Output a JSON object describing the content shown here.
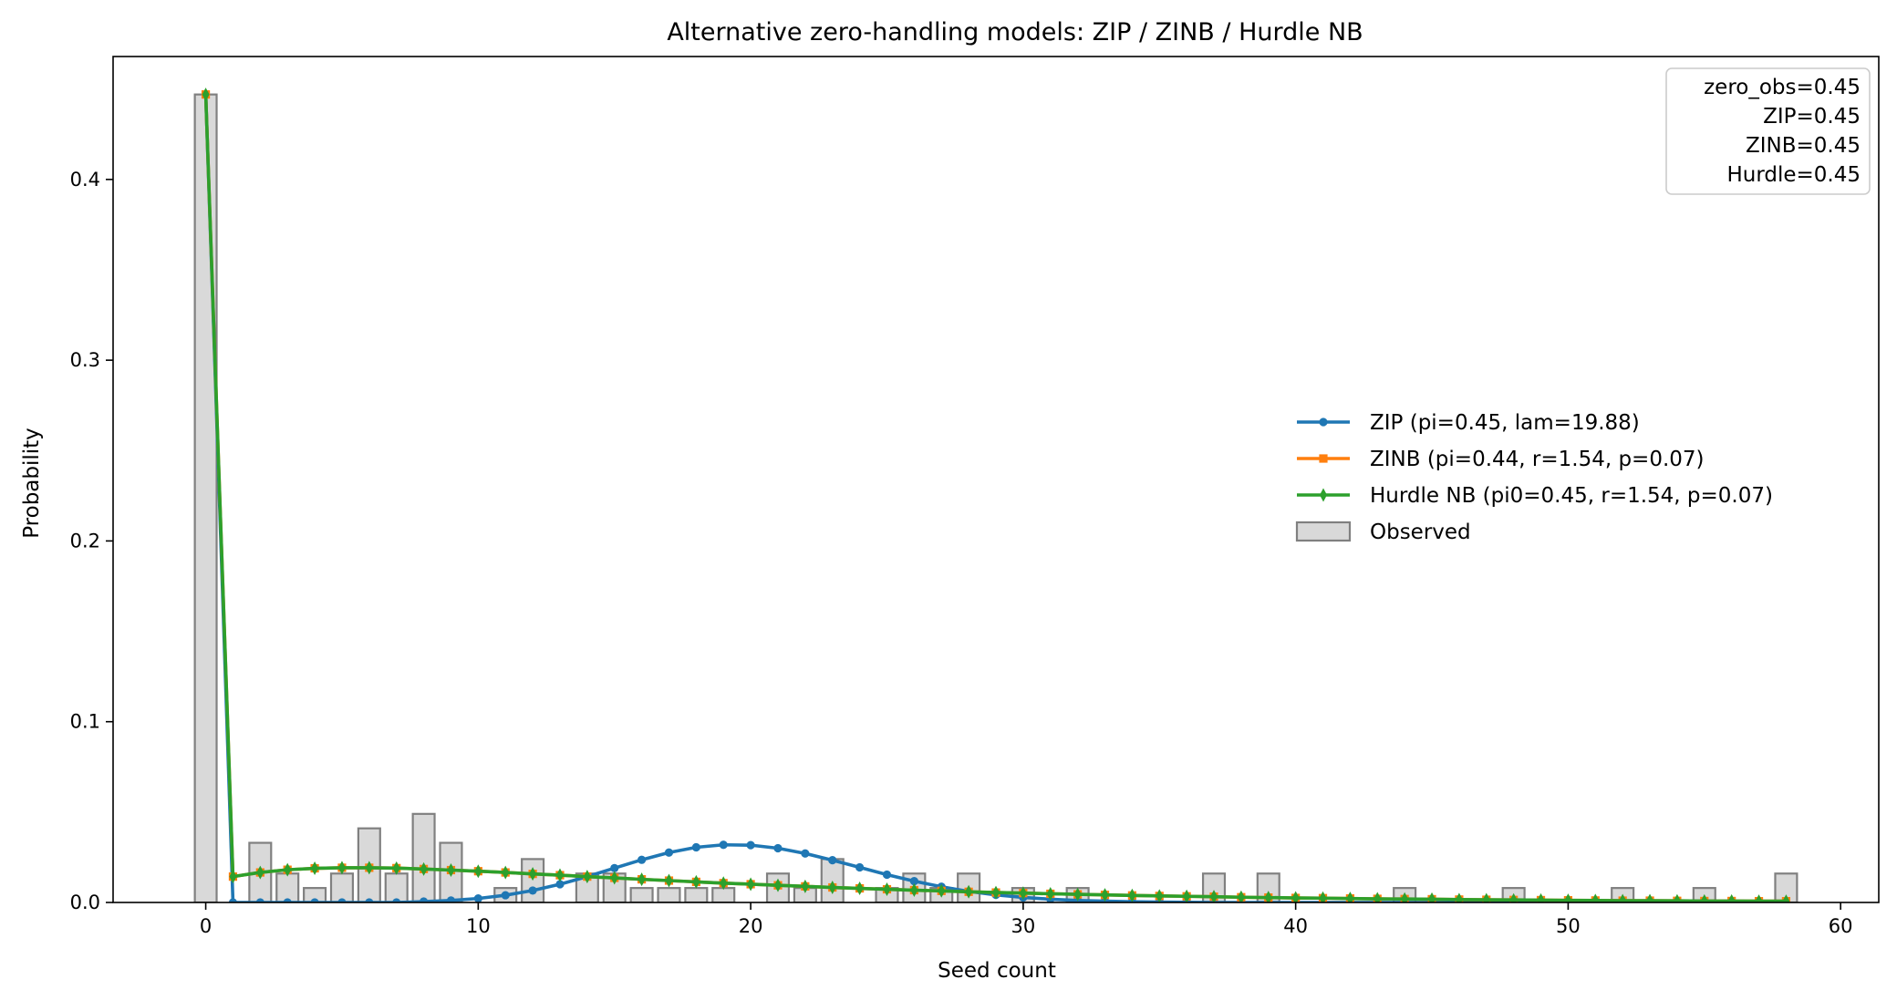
{
  "chart_data": {
    "type": "bar",
    "title": "Alternative zero-handling models: ZIP / ZINB / Hurdle NB",
    "xlabel": "Seed count",
    "ylabel": "Probability",
    "xlim": [
      -3.4,
      61.4
    ],
    "ylim": [
      0,
      0.468
    ],
    "xticks": [
      0,
      10,
      20,
      30,
      40,
      50,
      60
    ],
    "yticks": [
      0.0,
      0.1,
      0.2,
      0.3,
      0.4
    ],
    "ytick_labels": [
      "0.0",
      "0.1",
      "0.2",
      "0.3",
      "0.4"
    ],
    "legend_position": "center-right",
    "observed": {
      "name": "Observed",
      "color": "#d9d9d9",
      "edge_color": "#808080",
      "x": [
        0,
        2,
        3,
        4,
        5,
        6,
        7,
        8,
        9,
        11,
        12,
        14,
        15,
        16,
        17,
        18,
        19,
        21,
        22,
        23,
        25,
        26,
        27,
        28,
        30,
        32,
        37,
        39,
        44,
        48,
        52,
        55,
        58
      ],
      "values": [
        0.447,
        0.033,
        0.016,
        0.008,
        0.016,
        0.041,
        0.016,
        0.049,
        0.033,
        0.008,
        0.024,
        0.016,
        0.016,
        0.008,
        0.008,
        0.008,
        0.008,
        0.016,
        0.008,
        0.024,
        0.008,
        0.016,
        0.008,
        0.016,
        0.008,
        0.008,
        0.016,
        0.016,
        0.008,
        0.008,
        0.008,
        0.008,
        0.016
      ]
    },
    "x": [
      0,
      1,
      2,
      3,
      4,
      5,
      6,
      7,
      8,
      9,
      10,
      11,
      12,
      13,
      14,
      15,
      16,
      17,
      18,
      19,
      20,
      21,
      22,
      23,
      24,
      25,
      26,
      27,
      28,
      29,
      30,
      31,
      32,
      33,
      34,
      35,
      36,
      37,
      38,
      39,
      40,
      41,
      42,
      43,
      44,
      45,
      46,
      47,
      48,
      49,
      50,
      51,
      52,
      53,
      54,
      55,
      56,
      57,
      58
    ],
    "series": [
      {
        "name": "ZIP (pi=0.45, lam=19.88)",
        "color": "#1f77b4",
        "marker": "circle",
        "values": [
          0.447,
          0.0,
          0.0,
          0.0,
          0.0,
          0.0,
          0.0,
          0.0,
          0.0005,
          0.0011,
          0.0022,
          0.004,
          0.0066,
          0.0101,
          0.0143,
          0.019,
          0.0236,
          0.0276,
          0.0305,
          0.0319,
          0.0317,
          0.03,
          0.0271,
          0.0234,
          0.0194,
          0.0154,
          0.0118,
          0.0087,
          0.0061,
          0.0042,
          0.0028,
          0.0018,
          0.0011,
          0.0007,
          0.0004,
          0.0002,
          0.0001,
          0.0,
          0.0,
          0.0,
          0.0,
          0.0,
          0.0,
          0.0,
          0.0,
          0.0,
          0.0,
          0.0,
          0.0,
          0.0,
          0.0,
          0.0,
          0.0,
          0.0,
          0.0,
          0.0,
          0.0,
          0.0,
          0.0
        ]
      },
      {
        "name": "ZINB (pi=0.44, r=1.54, p=0.07)",
        "color": "#ff7f0e",
        "marker": "square",
        "values": [
          0.447,
          0.0143,
          0.0166,
          0.0181,
          0.0189,
          0.0192,
          0.0192,
          0.019,
          0.0185,
          0.0179,
          0.0173,
          0.0166,
          0.0158,
          0.0151,
          0.0143,
          0.0136,
          0.0128,
          0.0121,
          0.0114,
          0.0107,
          0.0101,
          0.0095,
          0.0089,
          0.0083,
          0.0078,
          0.0073,
          0.0068,
          0.0064,
          0.0059,
          0.0055,
          0.0052,
          0.0048,
          0.0045,
          0.0042,
          0.0039,
          0.0036,
          0.0034,
          0.0032,
          0.0029,
          0.0027,
          0.0025,
          0.0024,
          0.0022,
          0.002,
          0.0019,
          0.0018,
          0.0016,
          0.0015,
          0.0014,
          0.0013,
          0.0012,
          0.0011,
          0.001,
          0.001,
          0.0009,
          0.0008,
          0.0008,
          0.0007,
          0.0007
        ]
      },
      {
        "name": "Hurdle NB (pi0=0.45, r=1.54, p=0.07)",
        "color": "#2ca02c",
        "marker": "thin_diamond",
        "values": [
          0.447,
          0.0143,
          0.0166,
          0.0181,
          0.0189,
          0.0192,
          0.0192,
          0.019,
          0.0185,
          0.0179,
          0.0173,
          0.0166,
          0.0158,
          0.0151,
          0.0143,
          0.0136,
          0.0128,
          0.0121,
          0.0114,
          0.0107,
          0.0101,
          0.0095,
          0.0089,
          0.0083,
          0.0078,
          0.0073,
          0.0068,
          0.0064,
          0.0059,
          0.0055,
          0.0052,
          0.0048,
          0.0045,
          0.0042,
          0.0039,
          0.0036,
          0.0034,
          0.0032,
          0.0029,
          0.0027,
          0.0025,
          0.0024,
          0.0022,
          0.002,
          0.0019,
          0.0018,
          0.0016,
          0.0015,
          0.0014,
          0.0013,
          0.0012,
          0.0011,
          0.001,
          0.001,
          0.0009,
          0.0008,
          0.0008,
          0.0007,
          0.0007
        ]
      }
    ],
    "stats_box": [
      "zero_obs=0.45",
      "ZIP=0.45",
      "ZINB=0.45",
      "Hurdle=0.45"
    ]
  }
}
